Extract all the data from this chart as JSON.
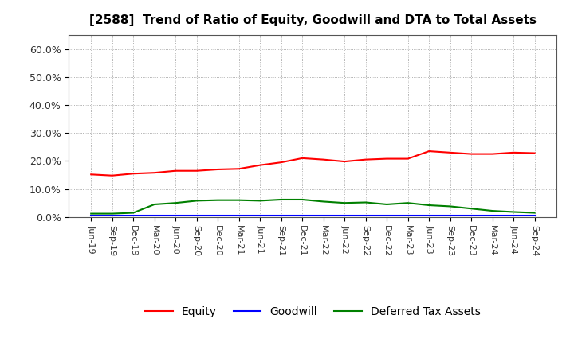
{
  "title": "[2588]  Trend of Ratio of Equity, Goodwill and DTA to Total Assets",
  "x_labels": [
    "Jun-19",
    "Sep-19",
    "Dec-19",
    "Mar-20",
    "Jun-20",
    "Sep-20",
    "Dec-20",
    "Mar-21",
    "Jun-21",
    "Sep-21",
    "Dec-21",
    "Mar-22",
    "Jun-22",
    "Sep-22",
    "Dec-22",
    "Mar-23",
    "Jun-23",
    "Sep-23",
    "Dec-23",
    "Mar-24",
    "Jun-24",
    "Sep-24"
  ],
  "equity": [
    15.2,
    14.8,
    15.5,
    15.8,
    16.5,
    16.5,
    17.0,
    17.2,
    18.5,
    19.5,
    21.0,
    20.5,
    19.8,
    20.5,
    20.8,
    20.8,
    23.5,
    23.0,
    22.5,
    22.5,
    23.0,
    22.8
  ],
  "goodwill": [
    0.5,
    0.5,
    0.5,
    0.5,
    0.5,
    0.5,
    0.5,
    0.5,
    0.5,
    0.5,
    0.5,
    0.5,
    0.5,
    0.5,
    0.5,
    0.5,
    0.5,
    0.5,
    0.5,
    0.5,
    0.5,
    0.5
  ],
  "dta": [
    1.2,
    1.2,
    1.5,
    4.5,
    5.0,
    5.8,
    6.0,
    6.0,
    5.8,
    6.2,
    6.2,
    5.5,
    5.0,
    5.2,
    4.5,
    5.0,
    4.2,
    3.8,
    3.0,
    2.2,
    1.8,
    1.5
  ],
  "equity_color": "#ff0000",
  "goodwill_color": "#0000ff",
  "dta_color": "#008000",
  "ylim": [
    0,
    65
  ],
  "yticks": [
    0,
    10,
    20,
    30,
    40,
    50,
    60
  ],
  "ytick_labels": [
    "0.0%",
    "10.0%",
    "20.0%",
    "30.0%",
    "40.0%",
    "50.0%",
    "60.0%"
  ],
  "background_color": "#ffffff",
  "plot_bg_color": "#ffffff",
  "grid_color": "#999999",
  "legend_labels": [
    "Equity",
    "Goodwill",
    "Deferred Tax Assets"
  ],
  "line_width": 1.5
}
